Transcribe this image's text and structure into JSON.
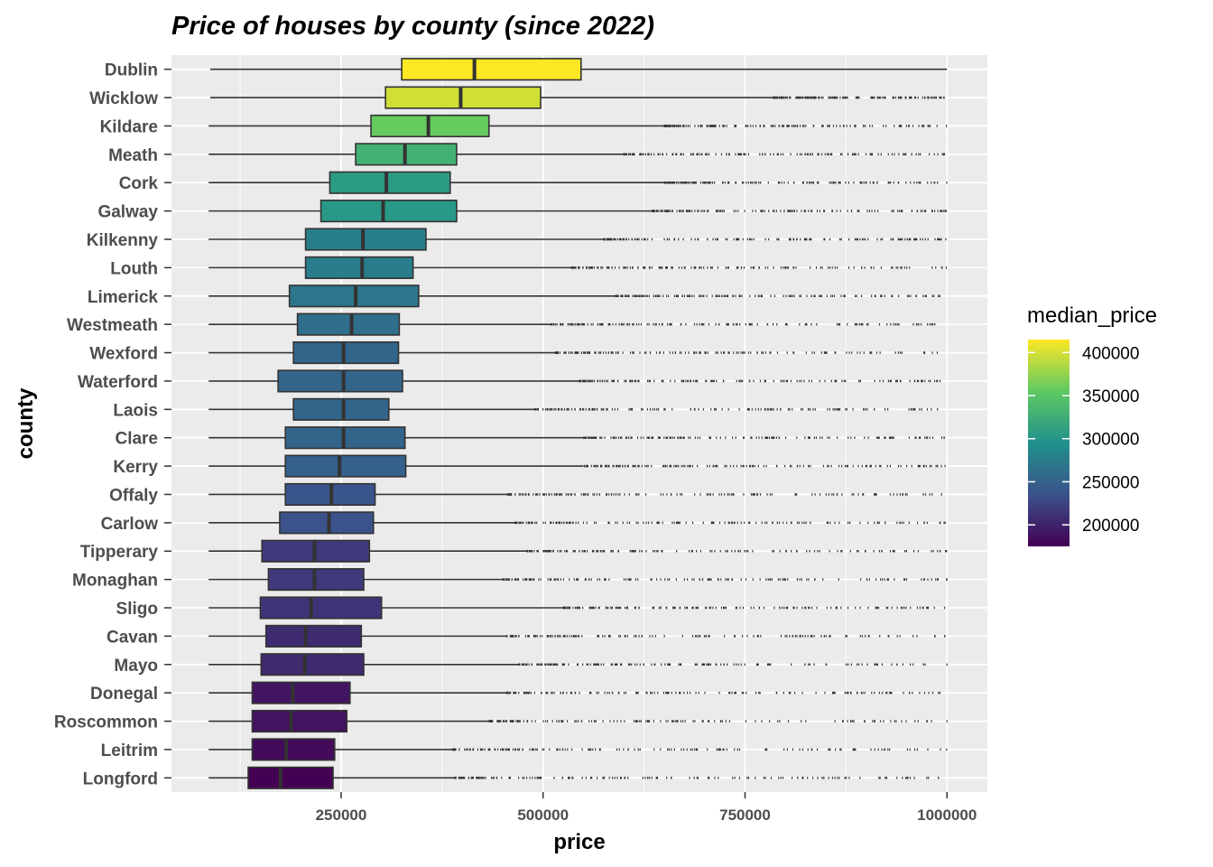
{
  "chart_data": {
    "type": "boxplot",
    "title": "Price of houses by county (since 2022)",
    "xlabel": "price",
    "ylabel": "county",
    "xlim": [
      40000,
      1050000
    ],
    "x_ticks": [
      250000,
      500000,
      750000,
      1000000
    ],
    "x_tick_labels": [
      "250000",
      "500000",
      "750000",
      "1000000"
    ],
    "grid": true,
    "orientation": "horizontal",
    "fill_variable": "median_price",
    "legend": {
      "title": "median_price",
      "position": "right",
      "range": [
        175000,
        415000
      ],
      "ticks": [
        200000,
        250000,
        300000,
        350000,
        400000
      ],
      "tick_labels": [
        "200000",
        "250000",
        "300000",
        "350000",
        "400000"
      ],
      "colors": [
        "#440154",
        "#3b528b",
        "#21918c",
        "#5ec962",
        "#fde725"
      ]
    },
    "series": [
      {
        "county": "Dublin",
        "min": 88000,
        "q1": 325000,
        "median": 415000,
        "q3": 547000,
        "max": 1000000,
        "outlier_start": null
      },
      {
        "county": "Wicklow",
        "min": 88000,
        "q1": 305000,
        "median": 398000,
        "q3": 497000,
        "max": 785000,
        "outlier_start": 785000
      },
      {
        "county": "Kildare",
        "min": 86000,
        "q1": 287000,
        "median": 358000,
        "q3": 433000,
        "max": 650000,
        "outlier_start": 650000
      },
      {
        "county": "Meath",
        "min": 86000,
        "q1": 268000,
        "median": 329000,
        "q3": 393000,
        "max": 600000,
        "outlier_start": 600000
      },
      {
        "county": "Cork",
        "min": 86000,
        "q1": 236000,
        "median": 306000,
        "q3": 385000,
        "max": 650000,
        "outlier_start": 650000
      },
      {
        "county": "Galway",
        "min": 86000,
        "q1": 225000,
        "median": 302000,
        "q3": 393000,
        "max": 635000,
        "outlier_start": 635000
      },
      {
        "county": "Kilkenny",
        "min": 86000,
        "q1": 206000,
        "median": 277000,
        "q3": 355000,
        "max": 575000,
        "outlier_start": 575000
      },
      {
        "county": "Louth",
        "min": 86000,
        "q1": 206000,
        "median": 276000,
        "q3": 339000,
        "max": 535000,
        "outlier_start": 535000
      },
      {
        "county": "Limerick",
        "min": 86000,
        "q1": 186000,
        "median": 268000,
        "q3": 346000,
        "max": 590000,
        "outlier_start": 590000
      },
      {
        "county": "Westmeath",
        "min": 86000,
        "q1": 196000,
        "median": 263000,
        "q3": 322000,
        "max": 510000,
        "outlier_start": 510000
      },
      {
        "county": "Wexford",
        "min": 86000,
        "q1": 191000,
        "median": 253000,
        "q3": 321000,
        "max": 515000,
        "outlier_start": 515000
      },
      {
        "county": "Waterford",
        "min": 86000,
        "q1": 172000,
        "median": 253000,
        "q3": 326000,
        "max": 545000,
        "outlier_start": 545000
      },
      {
        "county": "Laois",
        "min": 86000,
        "q1": 191000,
        "median": 253000,
        "q3": 309000,
        "max": 490000,
        "outlier_start": 490000
      },
      {
        "county": "Clare",
        "min": 86000,
        "q1": 181000,
        "median": 253000,
        "q3": 329000,
        "max": 550000,
        "outlier_start": 550000
      },
      {
        "county": "Kerry",
        "min": 86000,
        "q1": 181000,
        "median": 248000,
        "q3": 330000,
        "max": 550000,
        "outlier_start": 550000
      },
      {
        "county": "Offaly",
        "min": 86000,
        "q1": 181000,
        "median": 238000,
        "q3": 292000,
        "max": 455000,
        "outlier_start": 455000
      },
      {
        "county": "Carlow",
        "min": 86000,
        "q1": 174000,
        "median": 235000,
        "q3": 290000,
        "max": 465000,
        "outlier_start": 465000
      },
      {
        "county": "Tipperary",
        "min": 86000,
        "q1": 152000,
        "median": 217000,
        "q3": 285000,
        "max": 480000,
        "outlier_start": 480000
      },
      {
        "county": "Monaghan",
        "min": 86000,
        "q1": 160000,
        "median": 217000,
        "q3": 278000,
        "max": 450000,
        "outlier_start": 450000
      },
      {
        "county": "Sligo",
        "min": 86000,
        "q1": 150000,
        "median": 213000,
        "q3": 300000,
        "max": 525000,
        "outlier_start": 525000
      },
      {
        "county": "Cavan",
        "min": 86000,
        "q1": 157000,
        "median": 206000,
        "q3": 275000,
        "max": 455000,
        "outlier_start": 455000
      },
      {
        "county": "Mayo",
        "min": 86000,
        "q1": 151000,
        "median": 205000,
        "q3": 278000,
        "max": 470000,
        "outlier_start": 470000
      },
      {
        "county": "Donegal",
        "min": 86000,
        "q1": 140000,
        "median": 190000,
        "q3": 261000,
        "max": 455000,
        "outlier_start": 455000
      },
      {
        "county": "Roscommon",
        "min": 86000,
        "q1": 140000,
        "median": 188000,
        "q3": 257000,
        "max": 433000,
        "outlier_start": 433000
      },
      {
        "county": "Leitrim",
        "min": 86000,
        "q1": 140000,
        "median": 182000,
        "q3": 242000,
        "max": 388000,
        "outlier_start": 388000
      },
      {
        "county": "Longford",
        "min": 86000,
        "q1": 135000,
        "median": 175000,
        "q3": 240000,
        "max": 390000,
        "outlier_start": 390000
      }
    ]
  }
}
